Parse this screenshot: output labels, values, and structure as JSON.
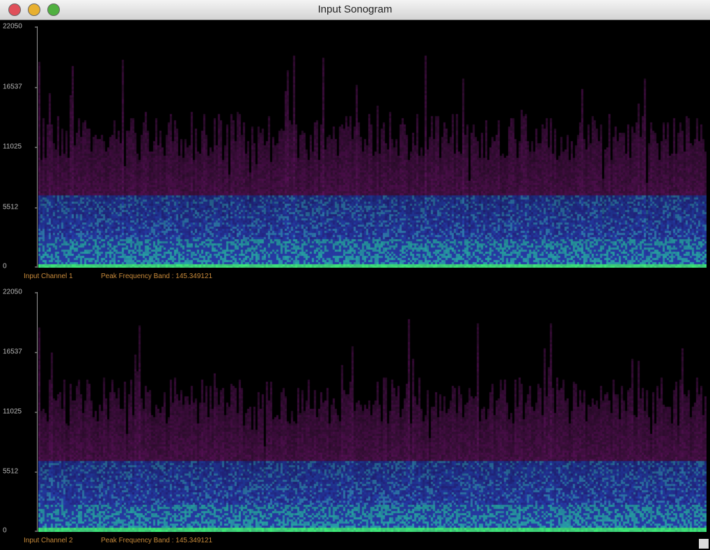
{
  "window": {
    "title": "Input Sonogram"
  },
  "colors": {
    "close": "#e0505a",
    "minimize": "#e8b030",
    "zoom": "#50b040",
    "label": "#c88a3a"
  },
  "y_ticks": [
    "22050",
    "16537",
    "11025",
    "5512",
    "0"
  ],
  "channels": [
    {
      "label": "Input Channel 1",
      "peak": "Peak Frequency Band : 145.349121"
    },
    {
      "label": "Input Channel 2",
      "peak": "Peak Frequency Band : 145.349121"
    }
  ]
}
